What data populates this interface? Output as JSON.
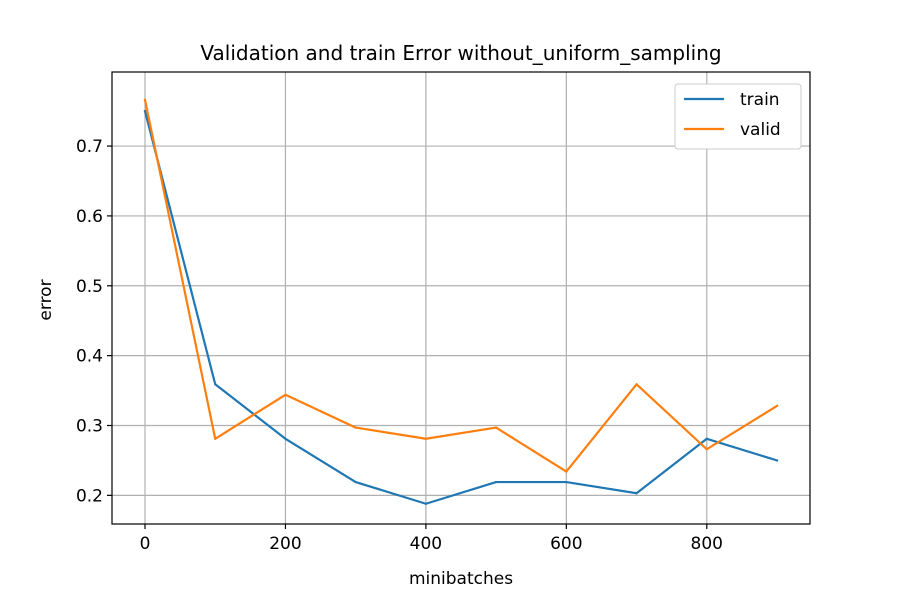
{
  "chart_data": {
    "type": "line",
    "title": "Validation and train Error without_uniform_sampling",
    "xlabel": "minibatches",
    "ylabel": "error",
    "x": [
      0,
      100,
      200,
      300,
      400,
      500,
      600,
      700,
      800,
      900
    ],
    "xlim": [
      -47,
      947
    ],
    "ylim": [
      0.159,
      0.806
    ],
    "xticks": [
      0,
      200,
      400,
      600,
      800
    ],
    "xtick_labels": [
      "0",
      "200",
      "400",
      "600",
      "800"
    ],
    "yticks": [
      0.2,
      0.3,
      0.4,
      0.5,
      0.6,
      0.7
    ],
    "ytick_labels": [
      "0.2",
      "0.3",
      "0.4",
      "0.5",
      "0.6",
      "0.7"
    ],
    "grid": true,
    "legend_position": "top-right",
    "series": [
      {
        "name": "train",
        "color": "#1f77b4",
        "values": [
          0.75,
          0.359,
          0.281,
          0.219,
          0.188,
          0.219,
          0.219,
          0.203,
          0.281,
          0.25
        ]
      },
      {
        "name": "valid",
        "color": "#ff7f0e",
        "values": [
          0.766,
          0.281,
          0.344,
          0.297,
          0.281,
          0.297,
          0.234,
          0.359,
          0.266,
          0.328
        ]
      }
    ]
  }
}
